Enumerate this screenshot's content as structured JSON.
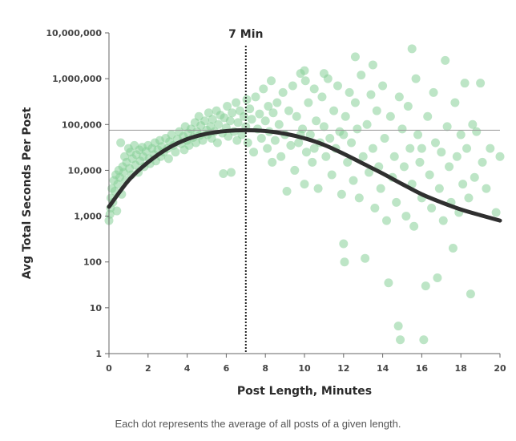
{
  "chart_data": {
    "type": "scatter",
    "xlabel": "Post Length, Minutes",
    "ylabel": "Avg Total Seconds Per Post",
    "x_ticks": [
      "0",
      "2",
      "4",
      "6",
      "8",
      "10",
      "12",
      "14",
      "16",
      "18",
      "20"
    ],
    "y_ticks": [
      "1",
      "10",
      "100",
      "1,000",
      "10,000",
      "100,000",
      "1,000,000",
      "10,000,000"
    ],
    "xlim": [
      0,
      20
    ],
    "ylim": [
      1,
      10000000
    ],
    "y_scale": "log",
    "annotation": {
      "label": "7 Min",
      "x": 7
    },
    "reference_line_y": 75000,
    "colors": {
      "dots": "#86cf98",
      "curve": "#2f2f2f",
      "axis": "#666666"
    },
    "trend": {
      "x": [
        0,
        1,
        2,
        3,
        4,
        5,
        6,
        7,
        8,
        9,
        10,
        11,
        12,
        13,
        14,
        15,
        16,
        17,
        18,
        19,
        20
      ],
      "y": [
        1600,
        6000,
        15000,
        30000,
        48000,
        63000,
        72000,
        75000,
        72000,
        63000,
        50000,
        36000,
        23000,
        14000,
        8500,
        5000,
        3000,
        2000,
        1400,
        1050,
        800
      ]
    },
    "points": [
      {
        "x": 0.0,
        "y": 800
      },
      {
        "x": 0.05,
        "y": 1100
      },
      {
        "x": 0.08,
        "y": 1500
      },
      {
        "x": 0.1,
        "y": 2500
      },
      {
        "x": 0.15,
        "y": 4000
      },
      {
        "x": 0.2,
        "y": 2000
      },
      {
        "x": 0.25,
        "y": 6000
      },
      {
        "x": 0.3,
        "y": 3500
      },
      {
        "x": 0.35,
        "y": 8000
      },
      {
        "x": 0.4,
        "y": 1300
      },
      {
        "x": 0.45,
        "y": 5000
      },
      {
        "x": 0.5,
        "y": 10000
      },
      {
        "x": 0.55,
        "y": 7000
      },
      {
        "x": 0.6,
        "y": 40000
      },
      {
        "x": 0.65,
        "y": 3000
      },
      {
        "x": 0.7,
        "y": 12000
      },
      {
        "x": 0.75,
        "y": 9000
      },
      {
        "x": 0.8,
        "y": 20000
      },
      {
        "x": 0.85,
        "y": 6000
      },
      {
        "x": 0.9,
        "y": 15000
      },
      {
        "x": 1.0,
        "y": 30000
      },
      {
        "x": 1.05,
        "y": 11000
      },
      {
        "x": 1.1,
        "y": 25000
      },
      {
        "x": 1.15,
        "y": 8000
      },
      {
        "x": 1.2,
        "y": 18000
      },
      {
        "x": 1.3,
        "y": 35000
      },
      {
        "x": 1.35,
        "y": 13000
      },
      {
        "x": 1.4,
        "y": 22000
      },
      {
        "x": 1.5,
        "y": 9000
      },
      {
        "x": 1.55,
        "y": 28000
      },
      {
        "x": 1.6,
        "y": 16000
      },
      {
        "x": 1.7,
        "y": 32000
      },
      {
        "x": 1.75,
        "y": 20000
      },
      {
        "x": 1.8,
        "y": 12000
      },
      {
        "x": 1.9,
        "y": 26000
      },
      {
        "x": 2.0,
        "y": 35000
      },
      {
        "x": 2.05,
        "y": 18000
      },
      {
        "x": 2.1,
        "y": 14000
      },
      {
        "x": 2.2,
        "y": 30000
      },
      {
        "x": 2.3,
        "y": 22000
      },
      {
        "x": 2.35,
        "y": 40000
      },
      {
        "x": 2.4,
        "y": 16000
      },
      {
        "x": 2.5,
        "y": 28000
      },
      {
        "x": 2.6,
        "y": 45000
      },
      {
        "x": 2.65,
        "y": 20000
      },
      {
        "x": 2.7,
        "y": 33000
      },
      {
        "x": 2.8,
        "y": 25000
      },
      {
        "x": 2.9,
        "y": 50000
      },
      {
        "x": 3.0,
        "y": 30000
      },
      {
        "x": 3.05,
        "y": 18000
      },
      {
        "x": 3.1,
        "y": 42000
      },
      {
        "x": 3.2,
        "y": 60000
      },
      {
        "x": 3.3,
        "y": 35000
      },
      {
        "x": 3.4,
        "y": 25000
      },
      {
        "x": 3.5,
        "y": 48000
      },
      {
        "x": 3.6,
        "y": 70000
      },
      {
        "x": 3.7,
        "y": 38000
      },
      {
        "x": 3.8,
        "y": 55000
      },
      {
        "x": 3.85,
        "y": 28000
      },
      {
        "x": 3.9,
        "y": 90000
      },
      {
        "x": 4.0,
        "y": 45000
      },
      {
        "x": 4.05,
        "y": 65000
      },
      {
        "x": 4.1,
        "y": 35000
      },
      {
        "x": 4.2,
        "y": 80000
      },
      {
        "x": 4.3,
        "y": 52000
      },
      {
        "x": 4.4,
        "y": 110000
      },
      {
        "x": 4.45,
        "y": 40000
      },
      {
        "x": 4.5,
        "y": 70000
      },
      {
        "x": 4.6,
        "y": 150000
      },
      {
        "x": 4.65,
        "y": 58000
      },
      {
        "x": 4.7,
        "y": 95000
      },
      {
        "x": 4.8,
        "y": 45000
      },
      {
        "x": 4.9,
        "y": 120000
      },
      {
        "x": 5.0,
        "y": 75000
      },
      {
        "x": 5.05,
        "y": 60000
      },
      {
        "x": 5.1,
        "y": 180000
      },
      {
        "x": 5.2,
        "y": 90000
      },
      {
        "x": 5.25,
        "y": 50000
      },
      {
        "x": 5.3,
        "y": 130000
      },
      {
        "x": 5.4,
        "y": 70000
      },
      {
        "x": 5.5,
        "y": 200000
      },
      {
        "x": 5.55,
        "y": 40000
      },
      {
        "x": 5.6,
        "y": 100000
      },
      {
        "x": 5.7,
        "y": 160000
      },
      {
        "x": 5.8,
        "y": 65000
      },
      {
        "x": 5.85,
        "y": 8500
      },
      {
        "x": 5.9,
        "y": 140000
      },
      {
        "x": 6.0,
        "y": 85000
      },
      {
        "x": 6.05,
        "y": 250000
      },
      {
        "x": 6.1,
        "y": 55000
      },
      {
        "x": 6.2,
        "y": 120000
      },
      {
        "x": 6.25,
        "y": 9000
      },
      {
        "x": 6.3,
        "y": 180000
      },
      {
        "x": 6.4,
        "y": 70000
      },
      {
        "x": 6.5,
        "y": 300000
      },
      {
        "x": 6.55,
        "y": 45000
      },
      {
        "x": 6.6,
        "y": 110000
      },
      {
        "x": 6.7,
        "y": 200000
      },
      {
        "x": 6.8,
        "y": 60000
      },
      {
        "x": 6.9,
        "y": 150000
      },
      {
        "x": 7.0,
        "y": 90000
      },
      {
        "x": 7.05,
        "y": 350000
      },
      {
        "x": 7.1,
        "y": 40000
      },
      {
        "x": 7.2,
        "y": 220000
      },
      {
        "x": 7.3,
        "y": 130000
      },
      {
        "x": 7.4,
        "y": 25000
      },
      {
        "x": 7.5,
        "y": 400000
      },
      {
        "x": 7.6,
        "y": 80000
      },
      {
        "x": 7.7,
        "y": 170000
      },
      {
        "x": 7.8,
        "y": 50000
      },
      {
        "x": 7.9,
        "y": 600000
      },
      {
        "x": 8.0,
        "y": 120000
      },
      {
        "x": 8.1,
        "y": 30000
      },
      {
        "x": 8.15,
        "y": 250000
      },
      {
        "x": 8.2,
        "y": 70000
      },
      {
        "x": 8.3,
        "y": 900000
      },
      {
        "x": 8.35,
        "y": 15000
      },
      {
        "x": 8.4,
        "y": 180000
      },
      {
        "x": 8.5,
        "y": 45000
      },
      {
        "x": 8.6,
        "y": 300000
      },
      {
        "x": 8.7,
        "y": 100000
      },
      {
        "x": 8.8,
        "y": 20000
      },
      {
        "x": 8.9,
        "y": 500000
      },
      {
        "x": 9.0,
        "y": 60000
      },
      {
        "x": 9.1,
        "y": 3500
      },
      {
        "x": 9.2,
        "y": 200000
      },
      {
        "x": 9.3,
        "y": 35000
      },
      {
        "x": 9.4,
        "y": 700000
      },
      {
        "x": 9.5,
        "y": 10000
      },
      {
        "x": 9.6,
        "y": 150000
      },
      {
        "x": 9.7,
        "y": 40000
      },
      {
        "x": 9.8,
        "y": 1300000
      },
      {
        "x": 9.9,
        "y": 80000
      },
      {
        "x": 10.0,
        "y": 5000
      },
      {
        "x": 10.05,
        "y": 900000
      },
      {
        "x": 10.1,
        "y": 25000
      },
      {
        "x": 10.2,
        "y": 300000
      },
      {
        "x": 10.3,
        "y": 60000
      },
      {
        "x": 10.4,
        "y": 15000
      },
      {
        "x": 10.5,
        "y": 600000
      },
      {
        "x": 10.6,
        "y": 120000
      },
      {
        "x": 10.7,
        "y": 4000
      },
      {
        "x": 10.8,
        "y": 40000
      },
      {
        "x": 10.9,
        "y": 400000
      },
      {
        "x": 11.0,
        "y": 90000
      },
      {
        "x": 11.1,
        "y": 20000
      },
      {
        "x": 11.2,
        "y": 1000000
      },
      {
        "x": 11.3,
        "y": 50000
      },
      {
        "x": 11.4,
        "y": 8000
      },
      {
        "x": 11.5,
        "y": 200000
      },
      {
        "x": 11.6,
        "y": 30000
      },
      {
        "x": 11.7,
        "y": 700000
      },
      {
        "x": 11.8,
        "y": 70000
      },
      {
        "x": 11.9,
        "y": 3000
      },
      {
        "x": 12.0,
        "y": 250
      },
      {
        "x": 12.05,
        "y": 100
      },
      {
        "x": 12.1,
        "y": 150000
      },
      {
        "x": 12.2,
        "y": 15000
      },
      {
        "x": 12.3,
        "y": 500000
      },
      {
        "x": 12.4,
        "y": 40000
      },
      {
        "x": 12.5,
        "y": 6000
      },
      {
        "x": 12.6,
        "y": 300000
      },
      {
        "x": 12.7,
        "y": 80000
      },
      {
        "x": 12.8,
        "y": 2500
      },
      {
        "x": 12.9,
        "y": 1200000
      },
      {
        "x": 13.0,
        "y": 20000
      },
      {
        "x": 13.1,
        "y": 120
      },
      {
        "x": 13.2,
        "y": 100000
      },
      {
        "x": 13.3,
        "y": 9000
      },
      {
        "x": 13.4,
        "y": 450000
      },
      {
        "x": 13.5,
        "y": 30000
      },
      {
        "x": 13.6,
        "y": 1500
      },
      {
        "x": 13.7,
        "y": 200000
      },
      {
        "x": 13.8,
        "y": 12000
      },
      {
        "x": 13.9,
        "y": 4000
      },
      {
        "x": 14.0,
        "y": 700000
      },
      {
        "x": 14.1,
        "y": 50000
      },
      {
        "x": 14.2,
        "y": 800
      },
      {
        "x": 14.3,
        "y": 35
      },
      {
        "x": 14.4,
        "y": 150000
      },
      {
        "x": 14.5,
        "y": 7000
      },
      {
        "x": 14.6,
        "y": 20000
      },
      {
        "x": 14.7,
        "y": 2000
      },
      {
        "x": 14.8,
        "y": 4
      },
      {
        "x": 14.85,
        "y": 400000
      },
      {
        "x": 14.9,
        "y": 2
      },
      {
        "x": 15.0,
        "y": 80000
      },
      {
        "x": 15.1,
        "y": 12000
      },
      {
        "x": 15.2,
        "y": 1000
      },
      {
        "x": 15.3,
        "y": 250000
      },
      {
        "x": 15.4,
        "y": 30000
      },
      {
        "x": 15.5,
        "y": 5000
      },
      {
        "x": 15.6,
        "y": 600
      },
      {
        "x": 15.7,
        "y": 1000000
      },
      {
        "x": 15.8,
        "y": 60000
      },
      {
        "x": 15.9,
        "y": 15000
      },
      {
        "x": 16.0,
        "y": 2500
      },
      {
        "x": 16.1,
        "y": 2
      },
      {
        "x": 16.2,
        "y": 30
      },
      {
        "x": 16.3,
        "y": 150000
      },
      {
        "x": 16.4,
        "y": 8000
      },
      {
        "x": 16.5,
        "y": 1500
      },
      {
        "x": 16.6,
        "y": 500000
      },
      {
        "x": 16.7,
        "y": 40000
      },
      {
        "x": 16.8,
        "y": 45
      },
      {
        "x": 16.9,
        "y": 4000
      },
      {
        "x": 17.0,
        "y": 25000
      },
      {
        "x": 17.1,
        "y": 800
      },
      {
        "x": 17.2,
        "y": 2500000
      },
      {
        "x": 17.3,
        "y": 90000
      },
      {
        "x": 17.4,
        "y": 12000
      },
      {
        "x": 17.5,
        "y": 2000
      },
      {
        "x": 17.6,
        "y": 200
      },
      {
        "x": 17.7,
        "y": 300000
      },
      {
        "x": 17.8,
        "y": 20000
      },
      {
        "x": 17.9,
        "y": 1200
      },
      {
        "x": 18.0,
        "y": 60000
      },
      {
        "x": 18.1,
        "y": 5000
      },
      {
        "x": 18.2,
        "y": 800000
      },
      {
        "x": 18.3,
        "y": 30000
      },
      {
        "x": 18.4,
        "y": 2500
      },
      {
        "x": 18.5,
        "y": 20
      },
      {
        "x": 18.6,
        "y": 100000
      },
      {
        "x": 18.7,
        "y": 7000
      },
      {
        "x": 18.8,
        "y": 70000
      },
      {
        "x": 19.0,
        "y": 800000
      },
      {
        "x": 19.1,
        "y": 15000
      },
      {
        "x": 19.3,
        "y": 4000
      },
      {
        "x": 19.5,
        "y": 30000
      },
      {
        "x": 19.8,
        "y": 1200
      },
      {
        "x": 20.0,
        "y": 20000
      },
      {
        "x": 16.0,
        "y": 30000
      },
      {
        "x": 15.5,
        "y": 4500000
      },
      {
        "x": 12.6,
        "y": 3000000
      },
      {
        "x": 11.0,
        "y": 1300000
      },
      {
        "x": 10.0,
        "y": 1500000
      },
      {
        "x": 13.5,
        "y": 2000000
      },
      {
        "x": 12.0,
        "y": 60000
      },
      {
        "x": 9.8,
        "y": 60000
      },
      {
        "x": 10.5,
        "y": 30000
      }
    ]
  },
  "caption": "Each dot represents the average of all posts of a given length."
}
